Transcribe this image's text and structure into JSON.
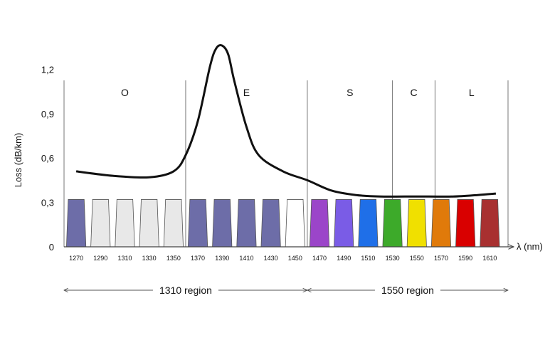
{
  "chart_data": {
    "type": "line",
    "ylabel": "Loss (dB/km)",
    "xlabel": "λ (nm)",
    "ylim": [
      0,
      1.3
    ],
    "y_ticks": [
      "0",
      "0,3",
      "0,6",
      "0,9",
      "1,2"
    ],
    "y_tick_values": [
      0,
      0.3,
      0.6,
      0.9,
      1.2
    ],
    "bands": [
      {
        "label": "O",
        "from": 1260,
        "to": 1360
      },
      {
        "label": "E",
        "from": 1360,
        "to": 1460
      },
      {
        "label": "S",
        "from": 1460,
        "to": 1530
      },
      {
        "label": "C",
        "from": 1530,
        "to": 1565
      },
      {
        "label": "L",
        "from": 1565,
        "to": 1625
      }
    ],
    "cwdm_channels": [
      {
        "wavelength": "1270",
        "value": 1270,
        "color": "#6d6da8"
      },
      {
        "wavelength": "1290",
        "value": 1290,
        "color": "#e8e8e8"
      },
      {
        "wavelength": "1310",
        "value": 1310,
        "color": "#e8e8e8"
      },
      {
        "wavelength": "1330",
        "value": 1330,
        "color": "#e8e8e8"
      },
      {
        "wavelength": "1350",
        "value": 1350,
        "color": "#e8e8e8"
      },
      {
        "wavelength": "1370",
        "value": 1370,
        "color": "#6d6da8"
      },
      {
        "wavelength": "1390",
        "value": 1390,
        "color": "#6d6da8"
      },
      {
        "wavelength": "1410",
        "value": 1410,
        "color": "#6d6da8"
      },
      {
        "wavelength": "1430",
        "value": 1430,
        "color": "#6d6da8"
      },
      {
        "wavelength": "1450",
        "value": 1450,
        "color": "#ffffff"
      },
      {
        "wavelength": "1470",
        "value": 1470,
        "color": "#9b45c9"
      },
      {
        "wavelength": "1490",
        "value": 1490,
        "color": "#7a5ce6"
      },
      {
        "wavelength": "1510",
        "value": 1510,
        "color": "#1f6fe8"
      },
      {
        "wavelength": "1530",
        "value": 1530,
        "color": "#3daa2a"
      },
      {
        "wavelength": "1550",
        "value": 1550,
        "color": "#f0e000"
      },
      {
        "wavelength": "1570",
        "value": 1570,
        "color": "#e07a0a"
      },
      {
        "wavelength": "1590",
        "value": 1590,
        "color": "#d90000"
      },
      {
        "wavelength": "1610",
        "value": 1610,
        "color": "#a83030"
      }
    ],
    "channel_peak_loss": 0.32,
    "series": [
      {
        "x": [
          1270,
          1300,
          1330,
          1350,
          1360,
          1370,
          1380,
          1385,
          1390,
          1395,
          1400,
          1410,
          1420,
          1440,
          1460,
          1480,
          1500,
          1520,
          1540,
          1560,
          1580,
          1600,
          1615
        ],
        "y": [
          0.51,
          0.48,
          0.47,
          0.51,
          0.62,
          0.85,
          1.22,
          1.34,
          1.36,
          1.3,
          1.12,
          0.81,
          0.62,
          0.51,
          0.45,
          0.38,
          0.35,
          0.34,
          0.34,
          0.34,
          0.34,
          0.35,
          0.36
        ]
      }
    ],
    "regions": [
      {
        "label": "1310 region",
        "from": 1260,
        "to": 1460
      },
      {
        "label": "1550 region",
        "from": 1460,
        "to": 1625
      }
    ],
    "grid": false
  }
}
